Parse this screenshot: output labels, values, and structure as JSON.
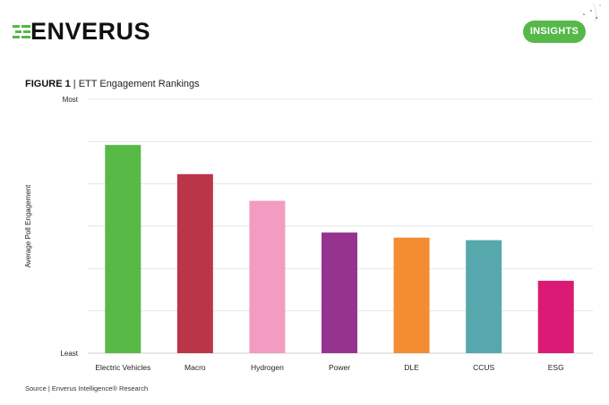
{
  "brand": {
    "logo_text": "ENVERUS",
    "badge_label": "INSIGHTS",
    "accent_color": "#55b848"
  },
  "figure": {
    "number": "FIGURE 1",
    "separator": " | ",
    "title": "ETT Engagement Rankings"
  },
  "source_text": "Source | Enverus Intelligence® Research",
  "chart_data": {
    "type": "bar",
    "title": "ETT Engagement Rankings",
    "xlabel": "",
    "ylabel": "Average Poll Engagement",
    "y_tick_labels": {
      "top": "Most",
      "bottom": "Least"
    },
    "ylim": [
      0,
      100
    ],
    "grid": true,
    "legend": "none",
    "categories": [
      "Electric Vehicles",
      "Macro",
      "Hydrogen",
      "Power",
      "DLE",
      "CCUS",
      "ESG"
    ],
    "values": [
      82,
      70.5,
      60,
      47.5,
      45.5,
      44.5,
      28.5
    ],
    "colors": [
      "#58b947",
      "#bb3549",
      "#f39cc2",
      "#96338e",
      "#f48c32",
      "#57a8ad",
      "#db1a75"
    ]
  }
}
